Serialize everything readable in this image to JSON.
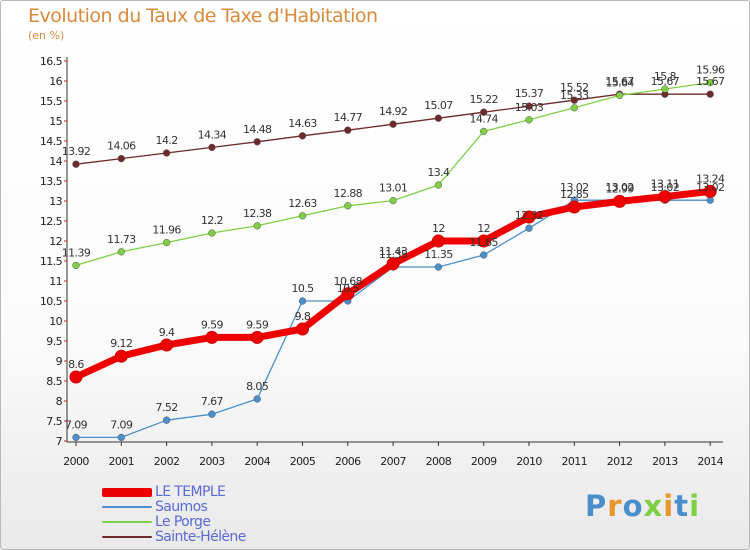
{
  "chart_data": {
    "type": "line",
    "title": "Evolution du Taux de Taxe d'Habitation",
    "subtitle": "(en %)",
    "x": [
      "2000",
      "2001",
      "2002",
      "2003",
      "2004",
      "2005",
      "2006",
      "2007",
      "2008",
      "2009",
      "2010",
      "2011",
      "2012",
      "2013",
      "2014"
    ],
    "ylim": [
      7,
      16.5
    ],
    "y_ticks": [
      "7",
      "7.5",
      "8",
      "8.5",
      "9",
      "9.5",
      "10",
      "10.5",
      "11",
      "11.5",
      "12",
      "12.5",
      "13",
      "13.5",
      "14",
      "14.5",
      "15",
      "15.5",
      "16",
      "16.5"
    ],
    "grid": false,
    "legend_position": "bottom-left",
    "series": [
      {
        "name": "LE TEMPLE",
        "color": "#ee0000",
        "values": [
          8.6,
          9.12,
          9.4,
          9.59,
          9.59,
          9.8,
          10.68,
          11.43,
          12,
          12,
          12.6,
          12.85,
          12.99,
          13.11,
          13.24
        ],
        "labels": [
          "8.6",
          "9.12",
          "9.4",
          "9.59",
          "9.59",
          "9.8",
          "10.68",
          "11.43",
          "12",
          "12",
          "",
          "12.85",
          "12.99",
          "13.11",
          "13.24"
        ]
      },
      {
        "name": "Saumos",
        "color": "#4a8fcc",
        "values": [
          7.09,
          7.09,
          7.52,
          7.67,
          8.05,
          10.5,
          10.5,
          11.35,
          11.35,
          11.65,
          12.32,
          13.02,
          13.02,
          13.02,
          13.02
        ],
        "labels": [
          "7.09",
          "7.09",
          "7.52",
          "7.67",
          "8.05",
          "10.5",
          "10.5",
          "11.35",
          "11.35",
          "11.65",
          "12.32",
          "13.02",
          "13.02",
          "13.02",
          "13.02"
        ]
      },
      {
        "name": "Le Porge",
        "color": "#7fcf45",
        "values": [
          11.39,
          11.73,
          11.96,
          12.2,
          12.38,
          12.63,
          12.88,
          13.01,
          13.4,
          14.74,
          15.03,
          15.33,
          15.64,
          15.8,
          15.96
        ],
        "labels": [
          "11.39",
          "11.73",
          "11.96",
          "12.2",
          "12.38",
          "12.63",
          "12.88",
          "13.01",
          "13.4",
          "14.74",
          "15.03",
          "15.33",
          "15.64",
          "15.8",
          "15.96"
        ]
      },
      {
        "name": "Sainte-Hélène",
        "color": "#6e2a2a",
        "values": [
          13.92,
          14.06,
          14.2,
          14.34,
          14.48,
          14.63,
          14.77,
          14.92,
          15.07,
          15.22,
          15.37,
          15.52,
          15.67,
          15.67,
          15.67
        ],
        "labels": [
          "13.92",
          "14.06",
          "14.2",
          "14.34",
          "14.48",
          "14.63",
          "14.77",
          "14.92",
          "15.07",
          "15.22",
          "15.37",
          "15.52",
          "15.67",
          "15.67",
          "15.67"
        ]
      }
    ]
  },
  "brand": {
    "logo_text": "Proxiti",
    "letter_colors": [
      "#4a8fcc",
      "#e8962e",
      "#4a8fcc",
      "#7fcf45",
      "#e8962e",
      "#4a8fcc",
      "#7fcf45"
    ]
  }
}
